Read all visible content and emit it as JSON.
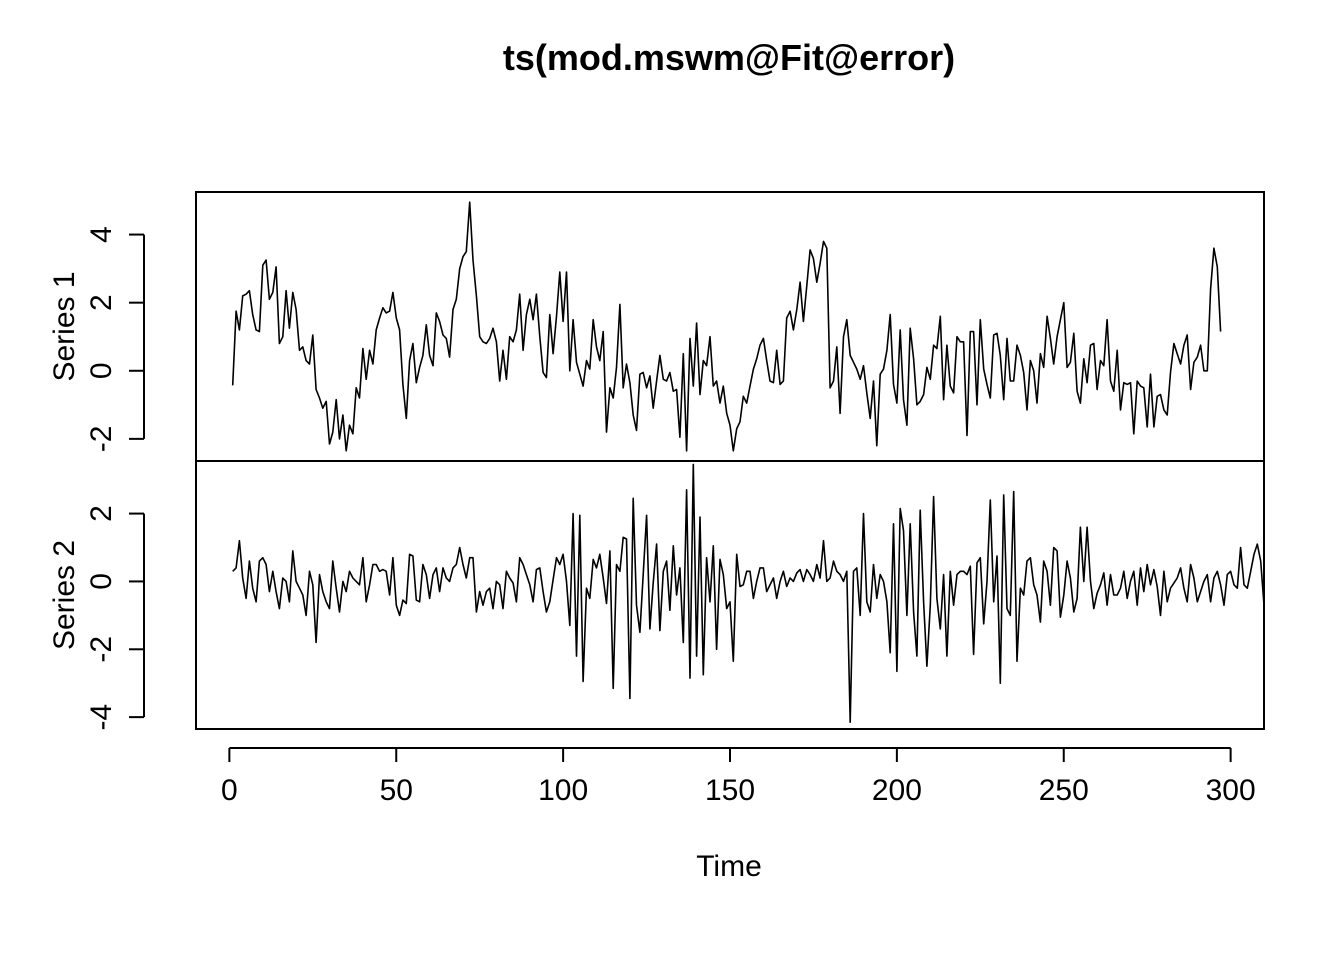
{
  "chart_data": {
    "type": "line",
    "title": "ts(mod.mswm@Fit@error)",
    "xlabel": "Time",
    "xlim": [
      -10,
      310
    ],
    "x_ticks": [
      "0",
      "50",
      "100",
      "150",
      "200",
      "250",
      "300"
    ],
    "x_tick_values": [
      0,
      50,
      100,
      150,
      200,
      250,
      300
    ],
    "x_start": 1,
    "grid": false,
    "legend": "none",
    "line_color": "#000000",
    "series": [
      {
        "name": "Series 1",
        "ylim": [
          -2.65,
          5.25
        ],
        "y_ticks": [
          "-2",
          "0",
          "2",
          "4"
        ],
        "y_tick_values": [
          -2,
          0,
          2,
          4
        ],
        "values": [
          -0.43,
          1.75,
          1.2,
          2.2,
          2.25,
          2.35,
          1.65,
          1.2,
          1.15,
          3.1,
          3.25,
          2.1,
          2.3,
          3.05,
          0.8,
          1.0,
          2.35,
          1.25,
          2.3,
          1.8,
          0.6,
          0.7,
          0.3,
          0.2,
          1.05,
          -0.55,
          -0.8,
          -1.1,
          -0.9,
          -2.15,
          -1.8,
          -0.85,
          -2.0,
          -1.3,
          -2.35,
          -1.6,
          -1.85,
          -0.5,
          -0.8,
          0.65,
          -0.25,
          0.6,
          0.2,
          1.2,
          1.55,
          1.85,
          1.7,
          1.75,
          2.3,
          1.55,
          1.2,
          -0.4,
          -1.4,
          0.3,
          0.8,
          -0.35,
          0.1,
          0.45,
          1.35,
          0.45,
          0.15,
          1.7,
          1.45,
          1.05,
          0.95,
          0.4,
          1.8,
          2.1,
          3.0,
          3.35,
          3.5,
          4.95,
          3.25,
          2.2,
          1.0,
          0.85,
          0.8,
          0.95,
          1.25,
          0.85,
          -0.3,
          0.6,
          -0.25,
          1.0,
          0.85,
          1.2,
          2.25,
          0.6,
          1.65,
          2.1,
          1.5,
          2.25,
          1.0,
          -0.05,
          -0.2,
          1.65,
          0.5,
          1.6,
          2.9,
          1.45,
          2.9,
          0.0,
          1.5,
          0.25,
          -0.1,
          -0.45,
          0.3,
          0.05,
          1.5,
          0.7,
          0.3,
          1.15,
          -1.8,
          -0.5,
          -0.8,
          0.1,
          1.95,
          -0.5,
          0.2,
          -0.35,
          -1.3,
          -1.75,
          -0.1,
          -0.05,
          -0.5,
          -0.15,
          -1.1,
          -0.3,
          0.45,
          -0.25,
          -0.3,
          -0.05,
          -0.6,
          -0.55,
          -1.95,
          0.5,
          -2.35,
          0.95,
          -0.45,
          1.4,
          -0.7,
          0.3,
          0.15,
          1.0,
          -0.45,
          -0.3,
          -0.95,
          -0.45,
          -1.25,
          -1.6,
          -2.35,
          -1.7,
          -1.5,
          -0.75,
          -0.95,
          -0.45,
          0.05,
          0.35,
          0.75,
          0.95,
          0.3,
          -0.3,
          -0.35,
          0.6,
          -0.4,
          -0.3,
          1.55,
          1.75,
          1.2,
          1.8,
          2.6,
          1.45,
          2.5,
          3.55,
          3.3,
          2.6,
          3.15,
          3.8,
          3.6,
          -0.5,
          -0.3,
          0.7,
          -1.25,
          1.0,
          1.5,
          0.45,
          0.25,
          0.05,
          -0.25,
          0.15,
          -0.65,
          -1.4,
          -0.3,
          -2.2,
          -0.1,
          0.05,
          0.6,
          1.65,
          -0.4,
          -0.95,
          1.2,
          -0.85,
          -1.6,
          1.25,
          0.35,
          -1.0,
          -0.9,
          -0.7,
          0.1,
          -0.25,
          0.75,
          0.65,
          1.6,
          -0.85,
          0.75,
          -0.45,
          -0.65,
          1.0,
          0.85,
          0.85,
          -1.9,
          1.15,
          1.15,
          -1.0,
          1.5,
          0.05,
          -0.4,
          -0.8,
          1.05,
          1.1,
          0.45,
          -0.85,
          0.95,
          -0.3,
          -0.3,
          0.75,
          0.45,
          -0.05,
          -1.15,
          0.3,
          0.0,
          -0.95,
          0.5,
          0.1,
          1.6,
          0.95,
          0.2,
          1.0,
          1.5,
          2.0,
          0.1,
          0.25,
          1.1,
          -0.6,
          -0.95,
          0.35,
          -0.35,
          0.75,
          0.8,
          -0.55,
          0.3,
          0.15,
          1.5,
          -0.3,
          -0.6,
          0.6,
          -1.15,
          -0.35,
          -0.4,
          -0.35,
          -1.85,
          -0.3,
          -0.45,
          -0.5,
          -1.65,
          -0.1,
          -1.65,
          -0.75,
          -0.7,
          -1.15,
          -1.3,
          -0.05,
          0.8,
          0.5,
          0.2,
          0.75,
          1.05,
          -0.55,
          0.25,
          0.4,
          0.75,
          0.0,
          0.0,
          2.4,
          3.6,
          3.05,
          1.15
        ]
      },
      {
        "name": "Series 2",
        "ylim": [
          -4.35,
          3.55
        ],
        "y_ticks": [
          "-4",
          "-2",
          "0",
          "2"
        ],
        "y_tick_values": [
          -4,
          -2,
          0,
          2
        ],
        "values": [
          0.3,
          0.4,
          1.2,
          0.1,
          -0.5,
          0.6,
          -0.2,
          -0.6,
          0.6,
          0.7,
          0.5,
          -0.3,
          0.3,
          -0.3,
          -0.8,
          0.1,
          0.0,
          -0.6,
          0.9,
          0.0,
          -0.2,
          -0.4,
          -1.0,
          0.3,
          -0.1,
          -1.8,
          0.2,
          -0.3,
          -0.6,
          -0.8,
          0.6,
          -0.2,
          -0.9,
          0.0,
          -0.3,
          0.3,
          0.1,
          0.0,
          -0.1,
          0.7,
          -0.6,
          -0.1,
          0.5,
          0.5,
          0.3,
          0.35,
          0.3,
          -0.4,
          0.7,
          -0.7,
          -1.0,
          -0.55,
          -0.65,
          0.8,
          0.75,
          -0.55,
          -0.6,
          0.5,
          0.2,
          -0.5,
          0.2,
          0.4,
          -0.3,
          0.4,
          0.1,
          0.0,
          0.4,
          0.5,
          1.0,
          0.5,
          0.1,
          0.7,
          0.7,
          -0.9,
          -0.3,
          -0.7,
          -0.3,
          -0.2,
          -0.8,
          0.0,
          -0.1,
          -0.8,
          0.3,
          0.1,
          -0.05,
          -0.6,
          0.7,
          0.5,
          0.2,
          -0.1,
          -0.6,
          0.35,
          0.4,
          -0.3,
          -0.9,
          -0.6,
          0.05,
          0.7,
          0.5,
          0.8,
          0.0,
          -1.3,
          2.0,
          -2.2,
          1.95,
          -2.95,
          -0.2,
          -0.5,
          0.65,
          0.4,
          0.8,
          0.1,
          -0.65,
          0.9,
          -3.15,
          0.5,
          0.3,
          1.3,
          1.25,
          -3.45,
          2.45,
          -0.7,
          -1.5,
          0.2,
          1.95,
          -1.4,
          -0.05,
          1.1,
          -1.45,
          0.3,
          0.6,
          -0.85,
          1.05,
          -0.4,
          0.4,
          -1.8,
          2.7,
          -2.85,
          3.45,
          -2.2,
          1.9,
          -2.75,
          0.7,
          -0.6,
          1.05,
          -2.0,
          0.65,
          0.2,
          -0.8,
          -0.6,
          -2.35,
          0.8,
          -0.15,
          -0.1,
          0.3,
          0.3,
          -0.5,
          0.0,
          0.4,
          0.4,
          -0.3,
          -0.1,
          0.1,
          -0.5,
          0.0,
          0.3,
          -0.15,
          0.1,
          0.0,
          0.25,
          0.35,
          0.0,
          0.35,
          0.2,
          0.0,
          0.5,
          0.1,
          1.2,
          0.0,
          0.1,
          0.6,
          0.3,
          0.2,
          0.0,
          0.3,
          -4.15,
          0.3,
          0.4,
          -1.0,
          2.0,
          -0.6,
          -0.9,
          0.5,
          -0.5,
          0.2,
          0.0,
          -0.6,
          -2.1,
          1.7,
          -2.65,
          2.15,
          1.5,
          -1.0,
          1.7,
          -0.9,
          -2.2,
          2.1,
          -0.6,
          -2.5,
          -0.7,
          2.5,
          -0.5,
          -1.4,
          0.2,
          -2.2,
          0.3,
          -0.7,
          0.2,
          0.3,
          0.3,
          0.2,
          0.45,
          -2.15,
          0.55,
          0.7,
          -1.25,
          0.0,
          2.4,
          -0.6,
          0.75,
          -3.0,
          2.55,
          -0.8,
          -1.0,
          2.65,
          -2.35,
          -0.2,
          -0.4,
          0.6,
          0.7,
          -0.1,
          -0.4,
          -1.2,
          0.6,
          0.3,
          -0.7,
          1.0,
          0.9,
          -1.05,
          -0.4,
          0.6,
          0.1,
          -0.9,
          -0.5,
          1.6,
          0.0,
          1.6,
          0.0,
          -0.8,
          -0.35,
          -0.1,
          0.25,
          -0.7,
          0.2,
          -0.4,
          -0.4,
          -0.2,
          0.3,
          -0.5,
          0.0,
          0.3,
          -0.7,
          0.4,
          -0.3,
          0.5,
          -0.1,
          0.35,
          -0.15,
          -1.0,
          0.3,
          -0.6,
          -0.2,
          -0.05,
          0.1,
          0.4,
          -0.2,
          -0.6,
          0.5,
          0.1,
          -0.6,
          -0.3,
          0.0,
          0.2,
          -0.6,
          0.1,
          0.3,
          -0.1,
          -0.7,
          0.2,
          0.3,
          -0.1,
          -0.2,
          1.0,
          -0.1,
          -0.2,
          0.3,
          0.8,
          1.1,
          0.6,
          -0.7
        ]
      }
    ]
  }
}
